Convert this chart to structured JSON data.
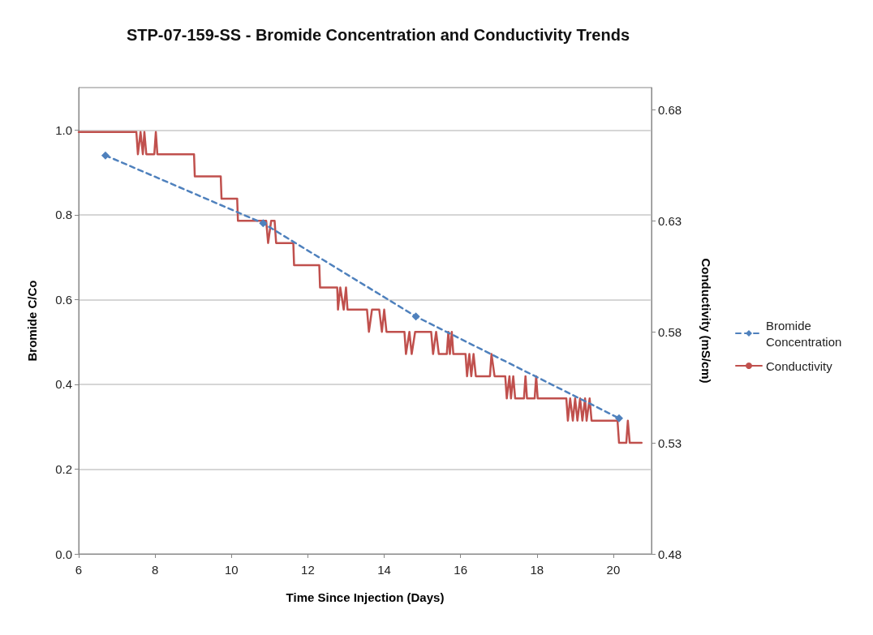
{
  "chart_data": {
    "type": "line",
    "title": "STP-07-159-SS - Bromide Concentration and Conductivity Trends",
    "xlabel": "Time Since Injection (Days)",
    "ylabel": "Bromide C/Co",
    "y2label": "Conductivity (mS/cm)",
    "xlim": [
      6,
      21
    ],
    "xticks": [
      6,
      8,
      10,
      12,
      14,
      16,
      18,
      20
    ],
    "ylim": [
      0,
      1.1
    ],
    "yticks": [
      {
        "value": 0,
        "label": "0.0"
      },
      0.2,
      0.4,
      0.6,
      0.8,
      {
        "value": 1,
        "label": "1.0"
      }
    ],
    "y2lim": [
      0.48,
      0.69
    ],
    "y2ticks": [
      0.48,
      0.53,
      0.58,
      0.63,
      0.68
    ],
    "grid": "y",
    "legend": "right",
    "series": [
      {
        "name": "Bromide Concentration",
        "color": "#4f81bd",
        "marker": "diamond",
        "line_style": "dashed",
        "x": [
          6.7,
          10.83,
          14.83,
          20.15
        ],
        "values": [
          0.94,
          0.78,
          0.56,
          0.32
        ]
      },
      {
        "name": "Conductivity",
        "color": "#c0504d",
        "marker": "none",
        "line_style": "solid",
        "axis": "y2",
        "x": [
          6.0,
          7.51,
          7.55,
          7.62,
          7.68,
          7.72,
          7.77,
          7.98,
          8.02,
          8.06,
          9.02,
          9.04,
          9.72,
          9.74,
          10.15,
          10.17,
          10.91,
          10.96,
          11.04,
          11.13,
          11.17,
          11.62,
          11.64,
          12.3,
          12.32,
          12.77,
          12.79,
          12.85,
          12.94,
          13.0,
          13.04,
          13.55,
          13.6,
          13.68,
          13.87,
          13.94,
          14.0,
          14.06,
          14.53,
          14.57,
          14.66,
          14.72,
          14.81,
          15.23,
          15.28,
          15.36,
          15.43,
          15.64,
          15.68,
          15.72,
          15.77,
          15.81,
          16.13,
          16.17,
          16.23,
          16.28,
          16.34,
          16.4,
          16.77,
          16.81,
          16.89,
          17.17,
          17.21,
          17.28,
          17.32,
          17.38,
          17.43,
          17.66,
          17.7,
          17.74,
          17.94,
          17.98,
          18.02,
          18.77,
          18.81,
          18.87,
          18.94,
          19.0,
          19.06,
          19.13,
          19.19,
          19.26,
          19.3,
          19.38,
          19.43,
          20.11,
          20.15,
          20.34,
          20.38,
          20.43,
          20.74
        ],
        "values": [
          0.67,
          0.67,
          0.66,
          0.67,
          0.66,
          0.67,
          0.66,
          0.66,
          0.67,
          0.66,
          0.66,
          0.65,
          0.65,
          0.64,
          0.64,
          0.63,
          0.63,
          0.62,
          0.63,
          0.63,
          0.62,
          0.62,
          0.61,
          0.61,
          0.6,
          0.6,
          0.59,
          0.6,
          0.59,
          0.6,
          0.59,
          0.59,
          0.58,
          0.59,
          0.59,
          0.58,
          0.59,
          0.58,
          0.58,
          0.57,
          0.58,
          0.57,
          0.58,
          0.58,
          0.57,
          0.58,
          0.57,
          0.57,
          0.58,
          0.57,
          0.58,
          0.57,
          0.57,
          0.56,
          0.57,
          0.56,
          0.57,
          0.56,
          0.56,
          0.57,
          0.56,
          0.56,
          0.55,
          0.56,
          0.55,
          0.56,
          0.55,
          0.55,
          0.56,
          0.55,
          0.55,
          0.56,
          0.55,
          0.55,
          0.54,
          0.55,
          0.54,
          0.55,
          0.54,
          0.55,
          0.54,
          0.55,
          0.54,
          0.55,
          0.54,
          0.54,
          0.53,
          0.53,
          0.54,
          0.53,
          0.53
        ]
      }
    ]
  }
}
